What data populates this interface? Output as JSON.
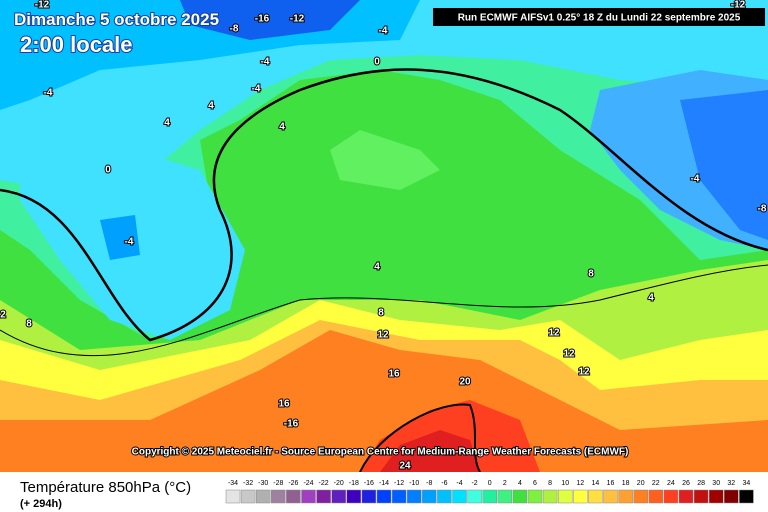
{
  "header": {
    "title": "Dimanche 5 octobre 2025",
    "time": "2:00 locale",
    "run": "Run ECMWF AIFSv1 0.25° 18 Z du Lundi 22 septembre 2025"
  },
  "copyright": "Copyright © 2025 Meteociel.fr - Source European Centre for Medium-Range Weather Forecasts (ECMWF)",
  "footer": {
    "variable": "Température 850hPa (°C)",
    "lead": "(+ 294h)"
  },
  "legend": {
    "labels": [
      "-34",
      "-32",
      "-30",
      "-28",
      "-26",
      "-24",
      "-22",
      "-20",
      "-18",
      "-16",
      "-14",
      "-12",
      "-10",
      "-8",
      "-6",
      "-4",
      "-2",
      "0",
      "2",
      "4",
      "6",
      "8",
      "10",
      "12",
      "14",
      "16",
      "18",
      "20",
      "22",
      "24",
      "26",
      "28",
      "30",
      "32",
      "34"
    ],
    "colors": [
      "#e4e4e4",
      "#c8c8c8",
      "#b0b0b0",
      "#a080a0",
      "#906090",
      "#a040c0",
      "#8020a0",
      "#6020c0",
      "#4000c0",
      "#2020e0",
      "#0040ff",
      "#0060ff",
      "#0080ff",
      "#00a0ff",
      "#00c0ff",
      "#00e0ff",
      "#40ffe0",
      "#20f0a0",
      "#40f080",
      "#40e040",
      "#80f040",
      "#b0f040",
      "#e0ff40",
      "#ffff40",
      "#ffe040",
      "#ffc040",
      "#ffa030",
      "#ff8020",
      "#ff6020",
      "#ff4020",
      "#e02020",
      "#c01010",
      "#a00000",
      "#800000",
      "#000000"
    ]
  },
  "contour_labels": [
    "-12",
    "-16",
    "-12",
    "-8",
    "-4",
    "-12",
    "0",
    "-4",
    "-4",
    "-4",
    "4",
    "4",
    "4",
    "0",
    "-4",
    "-4",
    "-8",
    "4",
    "8",
    "4",
    "8",
    "12",
    "12",
    "12",
    "12",
    "16",
    "20",
    "16",
    "-16",
    "24",
    "2",
    "8"
  ]
}
